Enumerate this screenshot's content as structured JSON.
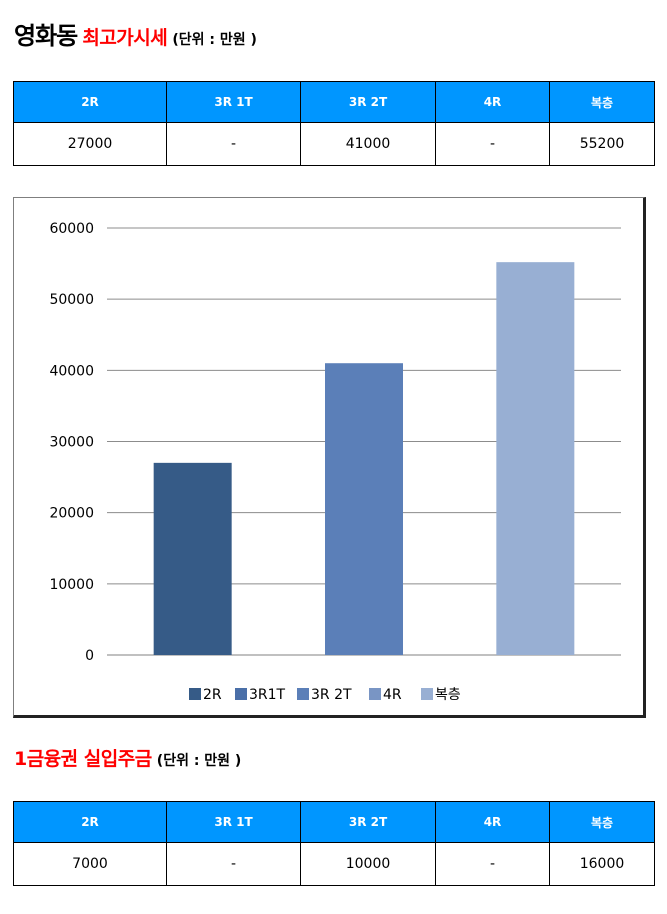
{
  "section1": {
    "title": "영화동",
    "subtitle": "최고가시세",
    "unit": "(단위 : 만원 )",
    "headers": [
      "2R",
      "3R 1T",
      "3R 2T",
      "4R",
      "복층"
    ],
    "values": [
      "27000",
      "-",
      "41000",
      "-",
      "55200"
    ]
  },
  "section2": {
    "title": "1금융권 실입주금",
    "unit": "(단위 : 만원 )",
    "headers": [
      "2R",
      "3R 1T",
      "3R 2T",
      "4R",
      "복층"
    ],
    "values": [
      "7000",
      "-",
      "10000",
      "-",
      "16000"
    ]
  },
  "chart_data": {
    "type": "bar",
    "categories": [
      "2R",
      "3R1T",
      "3R 2T",
      "4R",
      "복층"
    ],
    "values": [
      27000,
      null,
      41000,
      null,
      55200
    ],
    "ylim": [
      0,
      60000
    ],
    "yticks": [
      0,
      10000,
      20000,
      30000,
      40000,
      50000,
      60000
    ],
    "grid": true,
    "legend_position": "bottom",
    "colors": [
      "#365b87",
      "#4a6fa8",
      "#5b7fb8",
      "#7995c4",
      "#98afd3"
    ]
  }
}
